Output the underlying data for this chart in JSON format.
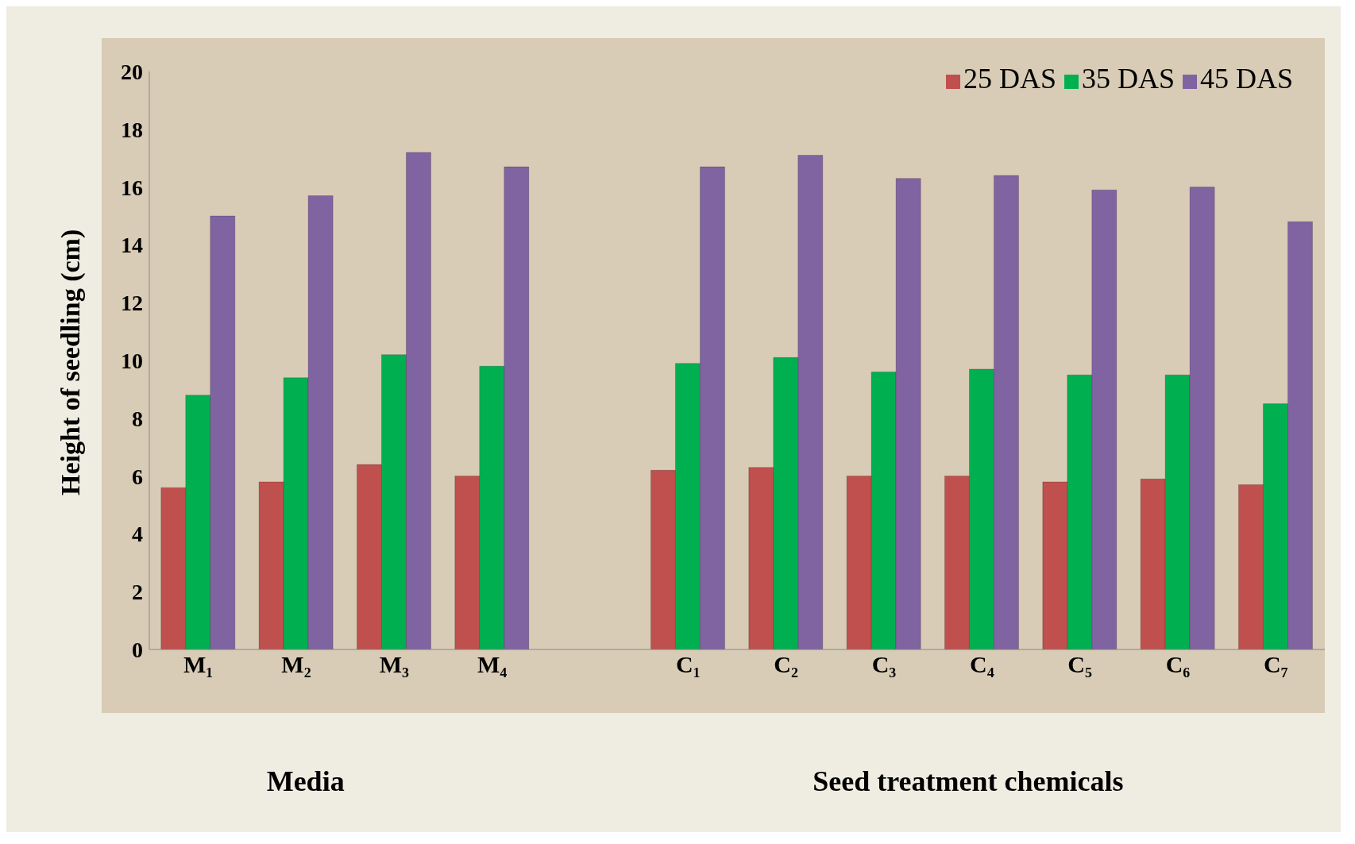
{
  "chart_data": {
    "type": "bar",
    "ylabel": "Height of seedling (cm)",
    "categories": [
      "M₁",
      "M₂",
      "M₃",
      "M₄",
      null,
      "C₁",
      "C₂",
      "C₃",
      "C₄",
      "C₅",
      "C₆",
      "C₇"
    ],
    "series": [
      {
        "name": "25 DAS",
        "color": "#c0504d",
        "values": [
          5.6,
          5.8,
          6.4,
          6.0,
          null,
          6.2,
          6.3,
          6.0,
          6.0,
          5.8,
          5.9,
          5.7
        ]
      },
      {
        "name": "35 DAS",
        "color": "#00b050",
        "values": [
          8.8,
          9.4,
          10.2,
          9.8,
          null,
          9.9,
          10.1,
          9.6,
          9.7,
          9.5,
          9.5,
          8.5
        ]
      },
      {
        "name": "45 DAS",
        "color": "#8064a2",
        "values": [
          15.0,
          15.7,
          17.2,
          16.7,
          null,
          16.7,
          17.1,
          16.3,
          16.4,
          15.9,
          16.0,
          14.8
        ]
      }
    ],
    "ylim": [
      0,
      20
    ],
    "yticks": [
      0,
      2,
      4,
      6,
      8,
      10,
      12,
      14,
      16,
      18,
      20
    ],
    "grid": false,
    "legend": "top right",
    "annotations": [
      "Media",
      "Seed treatment chemicals"
    ]
  }
}
